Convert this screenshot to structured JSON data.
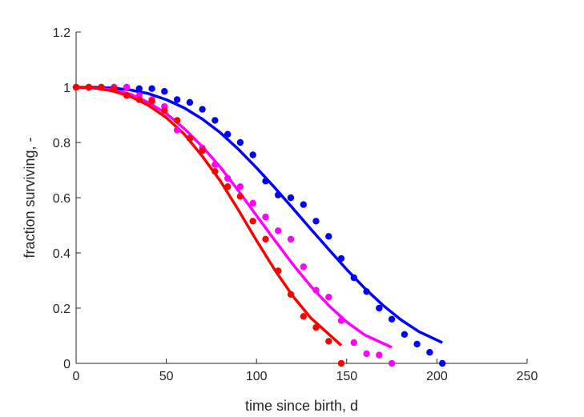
{
  "chart_data": {
    "type": "scatter",
    "title": "",
    "xlabel": "time since birth, d",
    "ylabel": "fraction surviving, -",
    "xlim": [
      0,
      250
    ],
    "ylim": [
      0,
      1.2
    ],
    "xticks": [
      0,
      50,
      100,
      150,
      200,
      250
    ],
    "yticks": [
      0,
      0.2,
      0.4,
      0.6,
      0.8,
      1,
      1.2
    ],
    "xtick_labels": [
      "0",
      "50",
      "100",
      "150",
      "200",
      "250"
    ],
    "ytick_labels": [
      "0",
      "0.2",
      "0.4",
      "0.6",
      "0.8",
      "1",
      "1.2"
    ],
    "grid": false,
    "legend": "none",
    "series": [
      {
        "color": "#0000ff",
        "points": {
          "x": [
            0,
            7,
            14,
            21,
            28,
            35,
            42,
            49,
            56,
            63,
            70,
            77,
            84,
            91,
            98,
            105,
            112,
            119,
            126,
            133,
            140,
            147,
            154,
            161,
            168,
            175,
            182,
            189,
            196,
            203
          ],
          "y": [
            1.0,
            1.0,
            1.0,
            1.0,
            1.0,
            0.995,
            0.995,
            0.985,
            0.955,
            0.945,
            0.92,
            0.88,
            0.83,
            0.8,
            0.755,
            0.66,
            0.61,
            0.6,
            0.575,
            0.515,
            0.46,
            0.38,
            0.31,
            0.26,
            0.2,
            0.16,
            0.105,
            0.07,
            0.04,
            0.0
          ]
        },
        "curve": {
          "x": [
            0,
            10,
            20,
            30,
            40,
            50,
            60,
            70,
            80,
            90,
            100,
            110,
            120,
            130,
            140,
            150,
            160,
            170,
            180,
            190,
            203
          ],
          "y": [
            1.0,
            1.0,
            0.997,
            0.99,
            0.977,
            0.955,
            0.925,
            0.885,
            0.835,
            0.775,
            0.708,
            0.637,
            0.563,
            0.487,
            0.413,
            0.34,
            0.272,
            0.211,
            0.158,
            0.115,
            0.075
          ]
        }
      },
      {
        "color": "#ff00ff",
        "points": {
          "x": [
            0,
            7,
            14,
            21,
            28,
            35,
            42,
            49,
            56,
            63,
            70,
            77,
            84,
            91,
            98,
            105,
            112,
            119,
            126,
            133,
            140,
            147,
            154,
            161,
            168,
            175
          ],
          "y": [
            1.0,
            1.0,
            1.0,
            1.0,
            1.0,
            0.97,
            0.955,
            0.93,
            0.845,
            0.815,
            0.78,
            0.72,
            0.67,
            0.64,
            0.58,
            0.53,
            0.48,
            0.45,
            0.35,
            0.265,
            0.24,
            0.155,
            0.075,
            0.035,
            0.03,
            0.0
          ]
        },
        "curve": {
          "x": [
            0,
            10,
            20,
            30,
            40,
            50,
            60,
            70,
            80,
            90,
            100,
            110,
            120,
            130,
            140,
            150,
            160,
            175
          ],
          "y": [
            1.0,
            0.998,
            0.99,
            0.975,
            0.945,
            0.905,
            0.85,
            0.785,
            0.71,
            0.625,
            0.535,
            0.447,
            0.36,
            0.28,
            0.21,
            0.15,
            0.103,
            0.058
          ]
        }
      },
      {
        "color": "#ff0000",
        "points": {
          "x": [
            0,
            7,
            14,
            21,
            28,
            35,
            42,
            49,
            56,
            63,
            70,
            77,
            84,
            91,
            98,
            105,
            112,
            119,
            126,
            133,
            140,
            147
          ],
          "y": [
            1.0,
            1.0,
            1.0,
            0.995,
            0.97,
            0.955,
            0.95,
            0.915,
            0.88,
            0.815,
            0.77,
            0.695,
            0.64,
            0.605,
            0.515,
            0.45,
            0.335,
            0.25,
            0.17,
            0.13,
            0.08,
            0.0
          ]
        },
        "curve": {
          "x": [
            0,
            10,
            20,
            30,
            40,
            50,
            60,
            70,
            80,
            90,
            100,
            110,
            120,
            130,
            147
          ],
          "y": [
            1.0,
            0.997,
            0.987,
            0.967,
            0.935,
            0.89,
            0.83,
            0.75,
            0.66,
            0.555,
            0.445,
            0.34,
            0.245,
            0.165,
            0.065
          ]
        }
      }
    ]
  }
}
